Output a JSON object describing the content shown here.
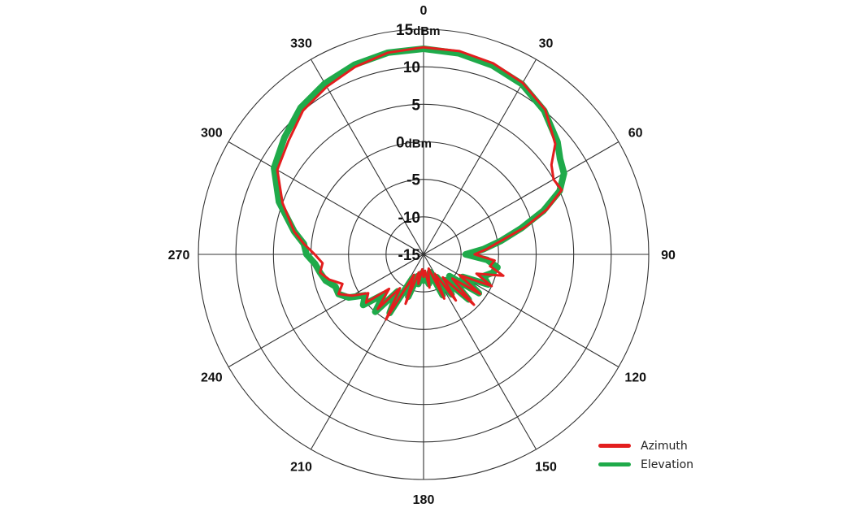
{
  "chart_data": {
    "type": "polar-line",
    "title": "",
    "radial_unit": "dBm",
    "radial_range": [
      -15,
      15
    ],
    "radial_ticks": [
      {
        "value": -15,
        "label": "-15"
      },
      {
        "value": -10,
        "label": "-10"
      },
      {
        "value": -5,
        "label": "-5"
      },
      {
        "value": 0,
        "label": "0dBm"
      },
      {
        "value": 5,
        "label": "5"
      },
      {
        "value": 10,
        "label": "10"
      },
      {
        "value": 15,
        "label": "15dBm"
      }
    ],
    "angular_ticks": [
      0,
      30,
      60,
      90,
      120,
      150,
      180,
      210,
      240,
      270,
      300,
      330
    ],
    "angular_labels": [
      "0",
      "30",
      "60",
      "90",
      "120",
      "150",
      "180",
      "210",
      "240",
      "270",
      "300",
      "330"
    ],
    "legend_position": "bottom-right",
    "series": [
      {
        "name": "Azimuth",
        "color": "#e31e1e",
        "width": 3,
        "angles": [
          0,
          10,
          20,
          30,
          40,
          50,
          55,
          60,
          65,
          70,
          75,
          80,
          85,
          90,
          95,
          100,
          105,
          110,
          115,
          120,
          125,
          130,
          135,
          140,
          145,
          150,
          155,
          160,
          165,
          170,
          175,
          180,
          185,
          190,
          195,
          200,
          205,
          210,
          215,
          220,
          225,
          230,
          235,
          240,
          245,
          250,
          255,
          260,
          265,
          270,
          275,
          280,
          290,
          300,
          310,
          320,
          330,
          340,
          350,
          360
        ],
        "values": [
          12.6,
          12.5,
          12.1,
          11.4,
          10.2,
          7.9,
          5.8,
          5.0,
          5.3,
          2.5,
          -1.0,
          -4.5,
          -6.5,
          -8.2,
          -5.5,
          -6.0,
          -4.0,
          -7.5,
          -5.0,
          -9.5,
          -5.8,
          -10.0,
          -5.5,
          -11.0,
          -7.5,
          -12.0,
          -8.5,
          -13.0,
          -12.5,
          -10.5,
          -12.8,
          -12.0,
          -13.0,
          -11.0,
          -12.5,
          -8.0,
          -12.0,
          -5.0,
          -9.5,
          -5.5,
          -8.5,
          -5.0,
          -6.0,
          -4.0,
          -2.5,
          -3.5,
          -2.0,
          -1.0,
          -1.5,
          -0.5,
          1.0,
          2.5,
          5.0,
          7.5,
          8.5,
          10.0,
          10.8,
          11.6,
          12.3,
          12.6
        ]
      },
      {
        "name": "Elevation",
        "color": "#1faa4a",
        "width": 8,
        "angles": [
          0,
          10,
          20,
          30,
          40,
          50,
          55,
          60,
          65,
          70,
          75,
          80,
          85,
          90,
          95,
          100,
          105,
          110,
          115,
          120,
          125,
          130,
          135,
          140,
          145,
          150,
          155,
          160,
          165,
          170,
          175,
          180,
          185,
          190,
          195,
          200,
          205,
          210,
          215,
          220,
          225,
          230,
          235,
          240,
          245,
          250,
          255,
          260,
          265,
          270,
          275,
          280,
          290,
          300,
          310,
          320,
          330,
          340,
          350,
          360
        ],
        "values": [
          12.4,
          12.2,
          11.8,
          11.2,
          10.0,
          8.3,
          7.2,
          6.6,
          5.0,
          2.0,
          -1.5,
          -4.5,
          -7.0,
          -9.4,
          -6.5,
          -5.0,
          -5.5,
          -6.5,
          -5.5,
          -9.0,
          -6.0,
          -10.5,
          -6.5,
          -10.5,
          -8.5,
          -11.5,
          -9.0,
          -12.5,
          -11.5,
          -11.0,
          -12.0,
          -11.5,
          -12.5,
          -11.0,
          -12.0,
          -9.0,
          -11.5,
          -6.0,
          -9.0,
          -5.0,
          -7.5,
          -4.5,
          -5.5,
          -3.5,
          -2.5,
          -2.5,
          -1.5,
          -1.0,
          -0.5,
          0.6,
          1.0,
          2.5,
          5.5,
          8.0,
          9.2,
          10.5,
          11.3,
          11.9,
          12.3,
          12.4
        ]
      }
    ]
  },
  "legend": {
    "items": [
      {
        "label": "Azimuth",
        "color": "#e31e1e"
      },
      {
        "label": "Elevation",
        "color": "#1faa4a"
      }
    ]
  }
}
